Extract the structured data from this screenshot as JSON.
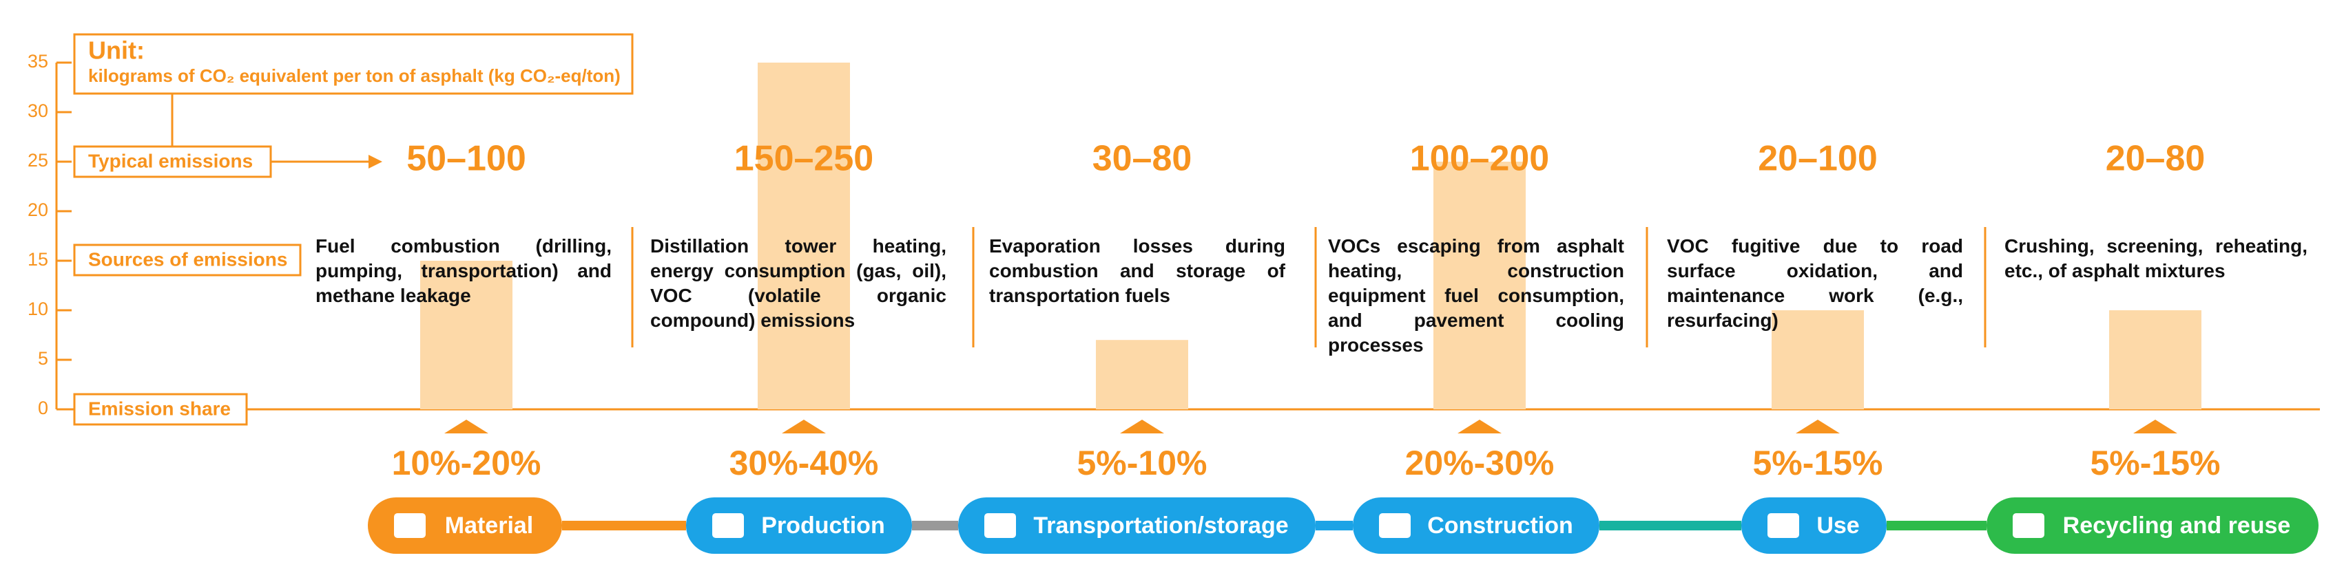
{
  "chart_data": {
    "type": "bar",
    "title": "Unit:",
    "subtitle": "kilograms of CO₂ equivalent per ton of asphalt (kg CO₂-eq/ton)",
    "row_labels": [
      "Typical emissions",
      "Sources of emissions",
      "Emission share"
    ],
    "categories": [
      "Material",
      "Production",
      "Transportation/storage",
      "Construction",
      "Use",
      "Recycling and reuse"
    ],
    "values": [
      15,
      35,
      7,
      25,
      10,
      10
    ],
    "color": "#fdd9a8",
    "typical_emissions": [
      "50–100",
      "150–250",
      "30–80",
      "100–200",
      "20–100",
      "20–80"
    ],
    "sources": [
      "Fuel combustion (drilling, pumping, transportation) and methane leakage",
      "Distillation tower heating, energy consumption (gas, oil), VOC (volatile organic compound) emissions",
      "Evaporation losses during combustion and storage of transportation fuels",
      "VOCs escaping from asphalt heating, construction equipment fuel consumption, and pavement cooling processes",
      "VOC fugitive due to road surface oxidation, and maintenance work (e.g., resurfacing)",
      "Crushing, screening, reheating, etc., of asphalt mixtures"
    ],
    "shares": [
      "10%-20%",
      "30%-40%",
      "5%-10%",
      "20%-30%",
      "5%-15%",
      "5%-15%"
    ],
    "stage_colors": [
      "#f7931e",
      "#1ba3e6",
      "#1ba3e6",
      "#1ba3e6",
      "#1ba3e6",
      "#2dbb4a"
    ],
    "ylim": [
      0,
      35
    ],
    "yticks": [
      0,
      5,
      10,
      15,
      20,
      25,
      30,
      35
    ]
  }
}
